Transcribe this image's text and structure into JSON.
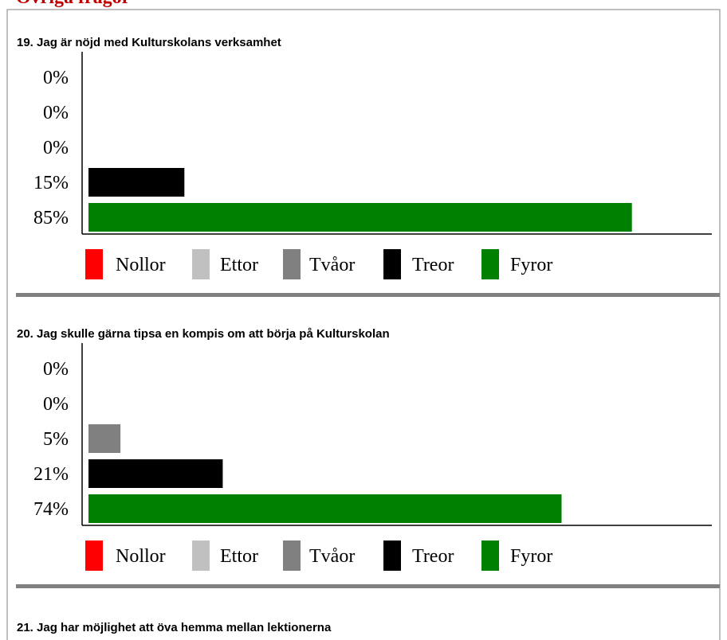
{
  "heading": "Övriga frågor",
  "chart_data": [
    {
      "type": "bar",
      "title": "19. Jag är nöjd med Kulturskolans verksamhet",
      "categories": [
        "Nollor",
        "Ettor",
        "Tvåor",
        "Treor",
        "Fyror"
      ],
      "colors": [
        "#ff0000",
        "#c0c0c0",
        "#808080",
        "#000000",
        "#008000"
      ],
      "values": [
        0,
        0,
        0,
        15,
        85
      ],
      "value_labels": [
        "0%",
        "0%",
        "0%",
        "15%",
        "85%"
      ]
    },
    {
      "type": "bar",
      "title": "20. Jag skulle gärna tipsa en kompis om att börja på Kulturskolan",
      "categories": [
        "Nollor",
        "Ettor",
        "Tvåor",
        "Treor",
        "Fyror"
      ],
      "colors": [
        "#ff0000",
        "#c0c0c0",
        "#808080",
        "#000000",
        "#008000"
      ],
      "values": [
        0,
        0,
        5,
        21,
        74
      ],
      "value_labels": [
        "0%",
        "0%",
        "5%",
        "21%",
        "74%"
      ]
    }
  ],
  "next_question": "21. Jag har möjlighet att öva hemma mellan lektionerna"
}
